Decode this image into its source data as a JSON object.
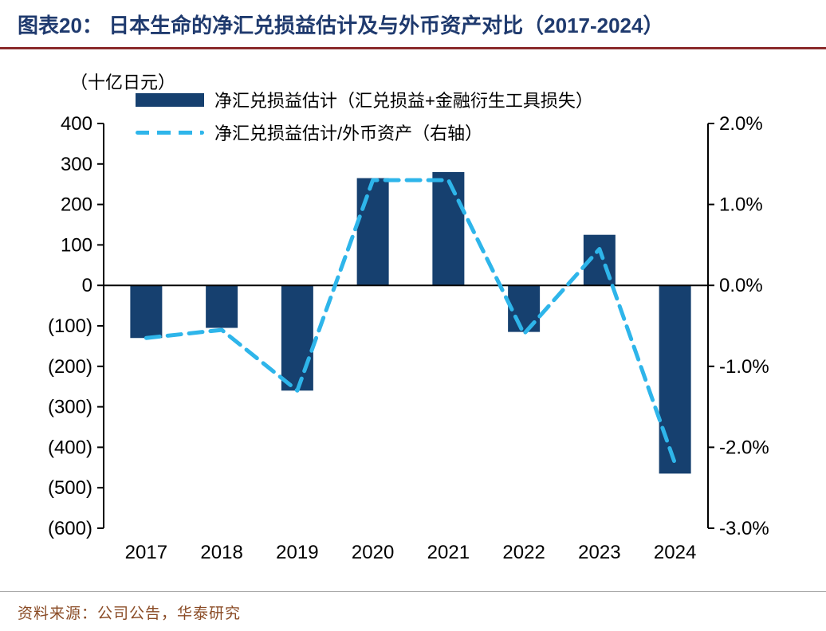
{
  "header": {
    "title": "图表20：  日本生命的净汇兑损益估计及与外币资产对比（2017-2024）"
  },
  "footer": {
    "source": "资料来源：公司公告，华泰研究"
  },
  "colors": {
    "bar": "#16406f",
    "line": "#2eb5ea",
    "title": "#1f3a6e",
    "rule": "#8a2a2b",
    "footer_text": "#8a4b25",
    "footer_rule": "#a9a9a9",
    "axis": "#000000"
  },
  "chart_data": {
    "type": "bar",
    "subtype": "bar-and-dashed-line-dual-axis",
    "title": "日本生命的净汇兑损益估计及与外币资产对比（2017-2024）",
    "categories": [
      "2017",
      "2018",
      "2019",
      "2020",
      "2021",
      "2022",
      "2023",
      "2024"
    ],
    "series": [
      {
        "name": "净汇兑损益估计（汇兑损益+金融衍生工具损失）",
        "type": "bar",
        "axis": "left",
        "color": "#16406f",
        "values": [
          -130,
          -105,
          -260,
          265,
          280,
          -115,
          125,
          -465
        ]
      },
      {
        "name": "净汇兑损益估计/外币资产（右轴）",
        "type": "dashed-line",
        "axis": "right",
        "color": "#2eb5ea",
        "values": [
          -0.65,
          -0.55,
          -1.3,
          1.3,
          1.3,
          -0.6,
          0.45,
          -2.2
        ]
      }
    ],
    "left_axis": {
      "title": "（十亿日元）",
      "min": -600,
      "max": 400,
      "tick_step": 100,
      "tick_labels": [
        "400",
        "300",
        "200",
        "100",
        "0",
        "(100)",
        "(200)",
        "(300)",
        "(400)",
        "(500)",
        "(600)"
      ]
    },
    "right_axis": {
      "min": -3.0,
      "max": 2.0,
      "tick_step": 1.0,
      "tick_labels": [
        "2.0%",
        "1.0%",
        "0.0%",
        "-1.0%",
        "-2.0%",
        "-3.0%"
      ]
    },
    "grid": false,
    "legend_position": "top-left"
  }
}
